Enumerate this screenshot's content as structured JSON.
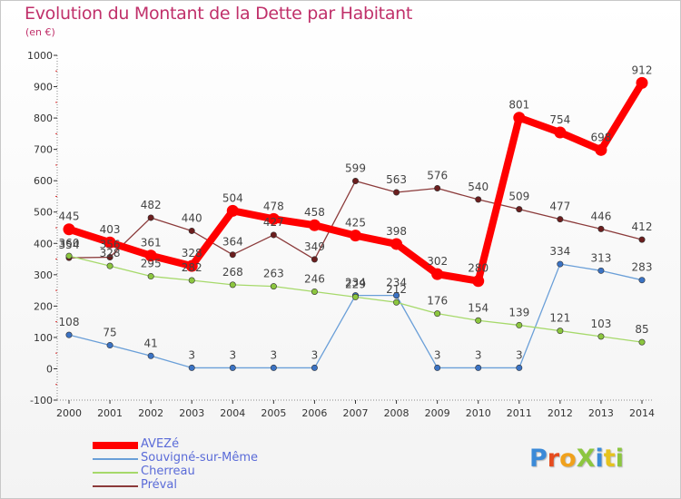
{
  "header": {
    "title": "Evolution du Montant de la Dette par Habitant",
    "subtitle": "(en €)"
  },
  "logo": {
    "text": "ProXiti",
    "letter_colors": [
      "#3b8ad8",
      "#e64b1e",
      "#f0a11c",
      "#8cc63f",
      "#3b8ad8",
      "#e6c31e",
      "#8cc63f"
    ]
  },
  "chart_data": {
    "type": "line",
    "title": "Evolution du Montant de la Dette par Habitant",
    "subtitle": "(en €)",
    "xlabel": "",
    "ylabel": "",
    "x": [
      "2000",
      "2001",
      "2002",
      "2003",
      "2004",
      "2005",
      "2006",
      "2007",
      "2008",
      "2009",
      "2010",
      "2011",
      "2012",
      "2013",
      "2014"
    ],
    "ylim": [
      -100,
      1000
    ],
    "yticks": [
      -100,
      0,
      100,
      200,
      300,
      400,
      500,
      600,
      700,
      800,
      900,
      1000
    ],
    "grid": false,
    "legend_position": "bottom-left",
    "series": [
      {
        "name": "AVEZé",
        "color": "#ff0000",
        "marker_color": "#ff0000",
        "emphasis": "thick",
        "values": [
          445,
          403,
          361,
          328,
          504,
          478,
          458,
          425,
          398,
          302,
          280,
          801,
          754,
          698,
          912
        ],
        "labels": [
          "445",
          "403",
          "361",
          "328",
          "504",
          "478",
          "458",
          "425",
          "398",
          "302",
          "280",
          "801",
          "754",
          "698",
          "912"
        ]
      },
      {
        "name": "Souvigné-sur-Même",
        "color": "#6a9fd8",
        "marker_color": "#3b73c4",
        "values": [
          108,
          75,
          41,
          3,
          3,
          3,
          3,
          234,
          234,
          3,
          3,
          3,
          334,
          313,
          283
        ],
        "labels": [
          "108",
          "75",
          "41",
          "3",
          "3",
          "3",
          "3",
          "234",
          "234",
          "3",
          "3",
          "3",
          "334",
          "313",
          "283"
        ]
      },
      {
        "name": "Cherreau",
        "color": "#a6d96a",
        "marker_color": "#8cc63f",
        "values": [
          360,
          328,
          295,
          282,
          268,
          263,
          246,
          229,
          212,
          176,
          154,
          139,
          121,
          103,
          85
        ],
        "labels": [
          "360",
          "328",
          "295",
          "282",
          "268",
          "263",
          "246",
          "229",
          "212",
          "176",
          "154",
          "139",
          "121",
          "103",
          "85"
        ]
      },
      {
        "name": "Préval",
        "color": "#8b3a3a",
        "marker_color": "#6b1e1e",
        "values": [
          354,
          356,
          482,
          440,
          364,
          427,
          349,
          599,
          563,
          576,
          540,
          509,
          477,
          446,
          412
        ],
        "labels": [
          "354",
          "356",
          "482",
          "440",
          "364",
          "427",
          "349",
          "599",
          "563",
          "576",
          "540",
          "509",
          "477",
          "446",
          "412"
        ]
      }
    ]
  }
}
